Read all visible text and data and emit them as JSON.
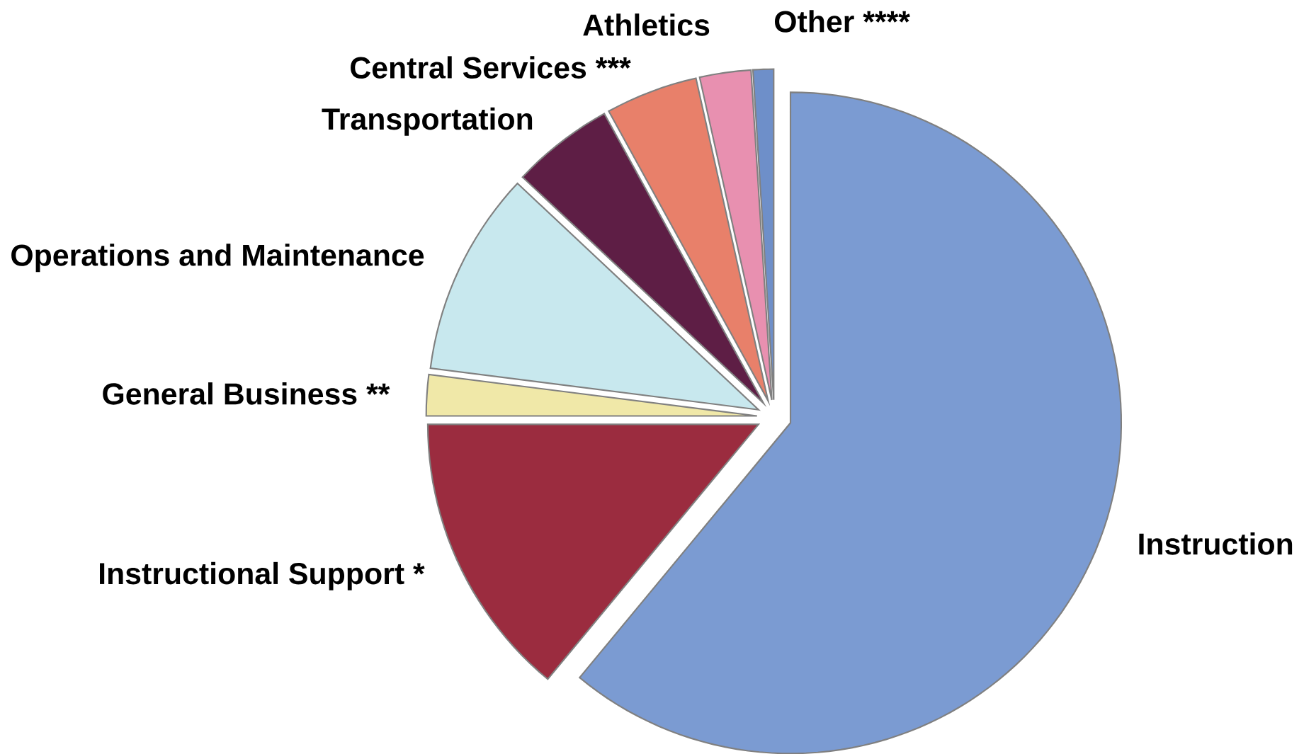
{
  "chart_data": {
    "type": "pie",
    "categories": [
      "Instruction",
      "Instructional Support *",
      "General Business **",
      "Operations and Maintenance",
      "Transportation",
      "Central Services ***",
      "Athletics",
      "Other ****"
    ],
    "values": [
      61,
      14,
      2,
      10,
      5,
      4.5,
      2.5,
      1
    ],
    "colors": [
      "#7b9bd2",
      "#9b2c3f",
      "#f0e8a8",
      "#c8e8ee",
      "#5e1e45",
      "#e8806a",
      "#e890b0",
      "#6e8fc9"
    ]
  }
}
